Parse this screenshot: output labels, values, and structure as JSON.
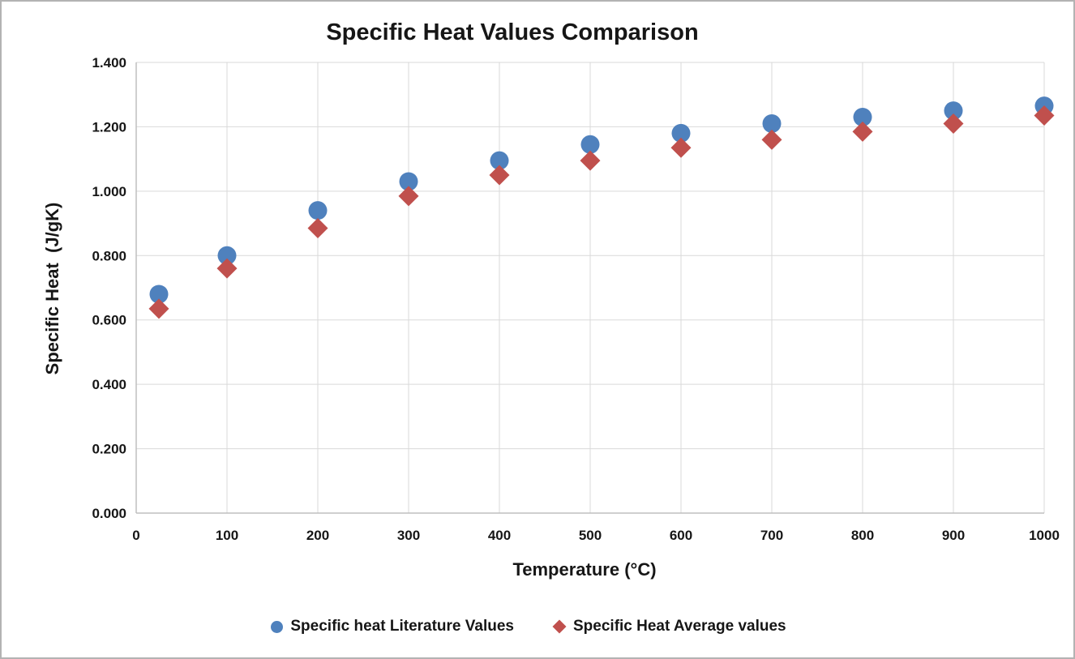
{
  "window": {
    "background": "#FFFFFF",
    "border_color": "#B3B3B3"
  },
  "chart_data": {
    "type": "scatter",
    "title": "Specific Heat Values Comparison",
    "xlabel": "Temperature (°C)",
    "ylabel": "Specific Heat  (J/gK)",
    "x": [
      25,
      100,
      200,
      300,
      400,
      500,
      600,
      700,
      800,
      900,
      1000
    ],
    "series": [
      {
        "name": "Specific heat Literature Values",
        "marker": "circle",
        "color": "#4F81BD",
        "values": [
          0.68,
          0.8,
          0.94,
          1.03,
          1.095,
          1.145,
          1.18,
          1.21,
          1.23,
          1.25,
          1.265
        ]
      },
      {
        "name": "Specific Heat Average values",
        "marker": "diamond",
        "color": "#C0504D",
        "values": [
          0.635,
          0.76,
          0.885,
          0.985,
          1.05,
          1.095,
          1.135,
          1.16,
          1.185,
          1.21,
          1.235
        ]
      }
    ],
    "xlim": [
      0,
      1000
    ],
    "ylim": [
      0,
      1.4
    ],
    "x_tick_labels": [
      "0",
      "100",
      "200",
      "300",
      "400",
      "500",
      "600",
      "700",
      "800",
      "900",
      "1000"
    ],
    "y_tick_labels": [
      "0.000",
      "0.200",
      "0.400",
      "0.600",
      "0.800",
      "1.000",
      "1.200",
      "1.400"
    ],
    "grid": true,
    "legend_position": "bottom",
    "gridline_color": "#D9D9D9",
    "axis_line_color": "#BFBFBF",
    "text_color": "#161616"
  }
}
